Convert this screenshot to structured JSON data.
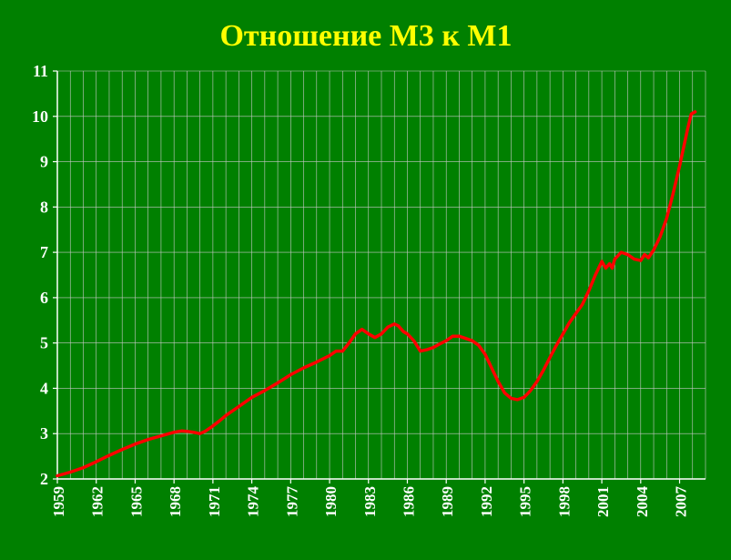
{
  "chart_data": {
    "type": "line",
    "title": "Отношение М3 к М1",
    "xlabel": "",
    "ylabel": "",
    "xlim": [
      1959,
      2009
    ],
    "ylim": [
      2,
      11
    ],
    "yticks": [
      2,
      3,
      4,
      5,
      6,
      7,
      8,
      9,
      10,
      11
    ],
    "xticks": [
      "1959",
      "1962",
      "1965",
      "1968",
      "1971",
      "1974",
      "1977",
      "1980",
      "1983",
      "1986",
      "1989",
      "1992",
      "1995",
      "1998",
      "2001",
      "2004",
      "2007"
    ],
    "grid": true,
    "legend": "none",
    "colors": {
      "background": "#008000",
      "title": "#ffff00",
      "line": "#ff0000",
      "text": "#ffffff",
      "grid": "#c8c8c8"
    },
    "series": [
      {
        "x": [
          1959.0,
          1960.0,
          1961.0,
          1962.0,
          1963.0,
          1964.0,
          1965.0,
          1966.0,
          1967.0,
          1968.0,
          1968.6,
          1969.0,
          1969.5,
          1970.0,
          1970.4,
          1970.9,
          1971.5,
          1972.0,
          1973.0,
          1974.0,
          1975.0,
          1976.0,
          1977.0,
          1978.0,
          1979.0,
          1980.0,
          1980.5,
          1981.0,
          1981.5,
          1982.0,
          1982.5,
          1983.0,
          1983.5,
          1984.0,
          1984.5,
          1985.0,
          1985.3,
          1985.7,
          1986.0,
          1986.5,
          1987.0,
          1987.5,
          1988.0,
          1988.5,
          1989.0,
          1989.5,
          1990.0,
          1990.5,
          1991.0,
          1991.5,
          1992.0,
          1992.5,
          1993.0,
          1993.5,
          1994.0,
          1994.5,
          1995.0,
          1995.5,
          1996.0,
          1996.5,
          1997.0,
          1997.5,
          1998.0,
          1998.5,
          1999.0,
          1999.5,
          2000.0,
          2000.5,
          2001.0,
          2001.3,
          2001.6,
          2001.8,
          2002.0,
          2002.5,
          2003.0,
          2003.5,
          2004.0,
          2004.3,
          2004.6,
          2005.0,
          2005.5,
          2006.0,
          2006.5,
          2007.0,
          2007.3,
          2007.6,
          2007.9,
          2008.2
        ],
        "values": [
          2.07,
          2.15,
          2.25,
          2.38,
          2.52,
          2.65,
          2.77,
          2.87,
          2.95,
          3.03,
          3.06,
          3.05,
          3.03,
          3.0,
          3.05,
          3.15,
          3.28,
          3.4,
          3.6,
          3.8,
          3.95,
          4.12,
          4.3,
          4.45,
          4.58,
          4.72,
          4.82,
          4.82,
          5.0,
          5.2,
          5.3,
          5.2,
          5.12,
          5.2,
          5.35,
          5.42,
          5.38,
          5.25,
          5.2,
          5.05,
          4.82,
          4.85,
          4.9,
          4.98,
          5.05,
          5.15,
          5.15,
          5.1,
          5.05,
          4.95,
          4.75,
          4.45,
          4.15,
          3.9,
          3.78,
          3.75,
          3.8,
          3.95,
          4.15,
          4.4,
          4.68,
          4.95,
          5.2,
          5.45,
          5.65,
          5.85,
          6.15,
          6.5,
          6.8,
          6.65,
          6.75,
          6.65,
          6.85,
          7.0,
          6.95,
          6.85,
          6.82,
          6.95,
          6.88,
          7.05,
          7.35,
          7.75,
          8.3,
          8.9,
          9.3,
          9.7,
          10.05,
          10.1
        ]
      }
    ]
  }
}
